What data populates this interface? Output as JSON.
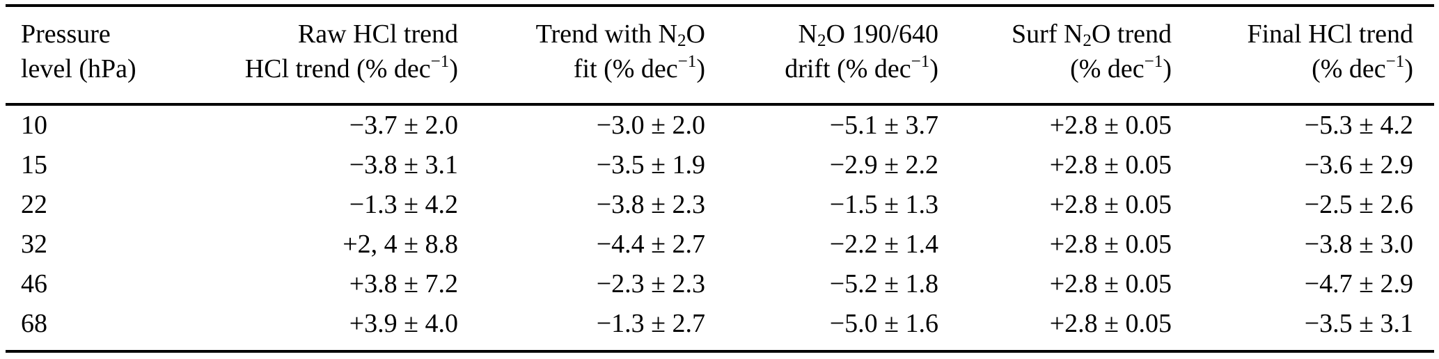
{
  "page": {
    "background_color": "#ffffff",
    "text_color": "#000000",
    "rule_color": "#000000"
  },
  "table": {
    "columns": [
      {
        "id": "pressure-level",
        "align": "left",
        "line1": "Pressure",
        "line2": "level (hPa)"
      },
      {
        "id": "raw-hcl-trend",
        "align": "right",
        "line1": "Raw HCl trend",
        "line2": "HCl trend (% dec^{−1})"
      },
      {
        "id": "trend-with-n2o-fit",
        "align": "right",
        "line1": "Trend with N_{2}O",
        "line2": "fit (% dec^{−1})"
      },
      {
        "id": "n2o-190-640-drift",
        "align": "right",
        "line1": "N_{2}O 190/640",
        "line2": "drift (% dec^{−1})"
      },
      {
        "id": "surf-n2o-trend",
        "align": "right",
        "line1": "Surf N_{2}O trend",
        "line2": "(% dec^{−1})"
      },
      {
        "id": "final-hcl-trend",
        "align": "right",
        "line1": "Final HCl trend",
        "line2": "(% dec^{−1})"
      }
    ],
    "rows": [
      [
        "10",
        "−3.7 ± 2.0",
        "−3.0 ± 2.0",
        "−5.1 ± 3.7",
        "+2.8 ± 0.05",
        "−5.3 ± 4.2"
      ],
      [
        "15",
        "−3.8 ± 3.1",
        "−3.5 ± 1.9",
        "−2.9 ± 2.2",
        "+2.8 ± 0.05",
        "−3.6 ± 2.9"
      ],
      [
        "22",
        "−1.3 ± 4.2",
        "−3.8 ± 2.3",
        "−1.5 ± 1.3",
        "+2.8 ± 0.05",
        "−2.5 ± 2.6"
      ],
      [
        "32",
        "+2, 4 ± 8.8",
        "−4.4 ± 2.7",
        "−2.2 ± 1.4",
        "+2.8 ± 0.05",
        "−3.8 ± 3.0"
      ],
      [
        "46",
        "+3.8 ± 7.2",
        "−2.3 ± 2.3",
        "−5.2 ± 1.8",
        "+2.8 ± 0.05",
        "−4.7 ± 2.9"
      ],
      [
        "68",
        "+3.9 ± 4.0",
        "−1.3 ± 2.7",
        "−5.0 ± 1.6",
        "+2.8 ± 0.05",
        "−3.5 ± 3.1"
      ]
    ]
  }
}
